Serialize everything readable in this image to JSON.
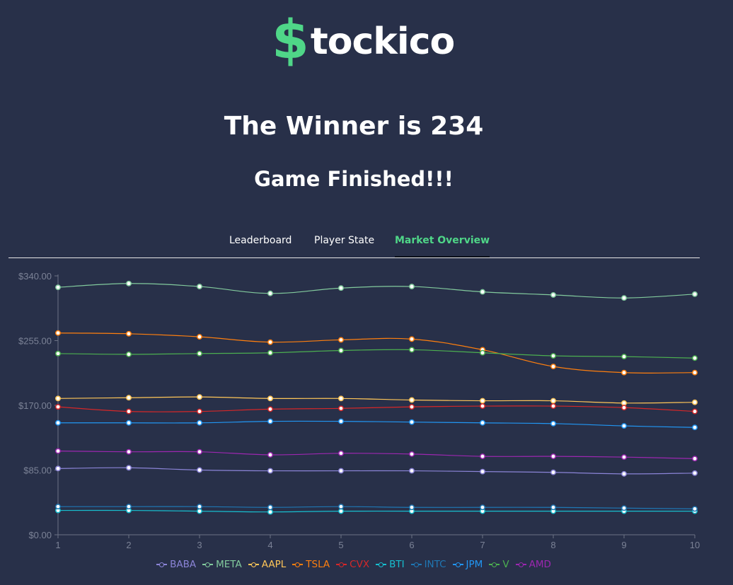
{
  "logo": {
    "dollar": "$",
    "text": "tockico"
  },
  "header": {
    "winner_text": "The Winner is 234",
    "status_text": "Game Finished!!!"
  },
  "tabs": [
    {
      "label": "Leaderboard",
      "active": false
    },
    {
      "label": "Player State",
      "active": false
    },
    {
      "label": "Market Overview",
      "active": true
    }
  ],
  "colors": {
    "background": "#283049",
    "brand_green": "#4fd688",
    "axis": "#6b7285",
    "tick_text": "#7b8296"
  },
  "chart_data": {
    "type": "line",
    "x": [
      1,
      2,
      3,
      4,
      5,
      6,
      7,
      8,
      9,
      10
    ],
    "ylim": [
      0,
      340
    ],
    "yticks": [
      0,
      85,
      170,
      255,
      340
    ],
    "ytick_labels": [
      "$0.00",
      "$85.00",
      "$170.00",
      "$255.00",
      "$340.00"
    ],
    "grid": false,
    "legend_position": "bottom-center",
    "series": [
      {
        "name": "BABA",
        "color": "#8b84d7",
        "values": [
          87,
          88,
          85,
          84,
          84,
          84,
          83,
          82,
          80,
          81
        ]
      },
      {
        "name": "META",
        "color": "#82ca9d",
        "values": [
          325,
          330,
          326,
          317,
          324,
          326,
          319,
          315,
          311,
          316
        ]
      },
      {
        "name": "AAPL",
        "color": "#ffc658",
        "values": [
          179,
          180,
          181,
          179,
          179,
          177,
          176,
          176,
          173,
          174
        ]
      },
      {
        "name": "TSLA",
        "color": "#ff7f0e",
        "values": [
          265,
          264,
          260,
          253,
          256,
          257,
          243,
          221,
          213,
          213
        ]
      },
      {
        "name": "CVX",
        "color": "#d62728",
        "values": [
          168,
          162,
          162,
          165,
          166,
          168,
          169,
          169,
          167,
          162
        ]
      },
      {
        "name": "BTI",
        "color": "#17becf",
        "values": [
          32,
          32,
          31,
          30,
          31,
          31,
          31,
          31,
          31,
          31
        ]
      },
      {
        "name": "INTC",
        "color": "#1f77b4",
        "values": [
          37,
          37,
          37,
          36,
          37,
          36,
          36,
          36,
          35,
          34
        ]
      },
      {
        "name": "JPM",
        "color": "#2196f3",
        "values": [
          147,
          147,
          147,
          149,
          149,
          148,
          147,
          146,
          143,
          141
        ]
      },
      {
        "name": "V",
        "color": "#4caf50",
        "values": [
          238,
          237,
          238,
          239,
          242,
          243,
          239,
          235,
          234,
          232
        ]
      },
      {
        "name": "AMD",
        "color": "#9c27b0",
        "values": [
          110,
          109,
          109,
          105,
          107,
          106,
          103,
          103,
          102,
          100
        ]
      }
    ]
  }
}
